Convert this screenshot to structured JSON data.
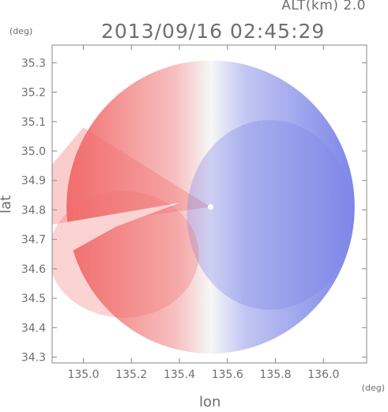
{
  "header": {
    "altitude_label": "ALT(km) 2.0",
    "timestamp": "2013/09/16 02:45:29"
  },
  "chart_data": {
    "type": "heatmap",
    "title": "2013/09/16 02:45:29",
    "subtitle": "ALT(km) 2.0",
    "xlabel": "lon",
    "ylabel": "lat",
    "x_unit": "(deg)",
    "y_unit": "(deg)",
    "xlim": [
      134.87,
      136.18
    ],
    "ylim": [
      34.28,
      35.36
    ],
    "x_ticks": [
      "135.0",
      "135.2",
      "135.4",
      "135.6",
      "135.8",
      "136.0"
    ],
    "y_ticks": [
      "34.3",
      "34.4",
      "34.5",
      "34.6",
      "34.7",
      "34.8",
      "34.9",
      "35.0",
      "35.1",
      "35.2",
      "35.3"
    ],
    "radar_center": {
      "lon": 135.53,
      "lat": 34.81
    },
    "coverage_radius_deg": 0.6,
    "colors": {
      "approaching": "#7d86e8",
      "receding": "#f26d6d",
      "neutral": "#f7f7f7",
      "axis": "#888888"
    },
    "grid": false
  }
}
